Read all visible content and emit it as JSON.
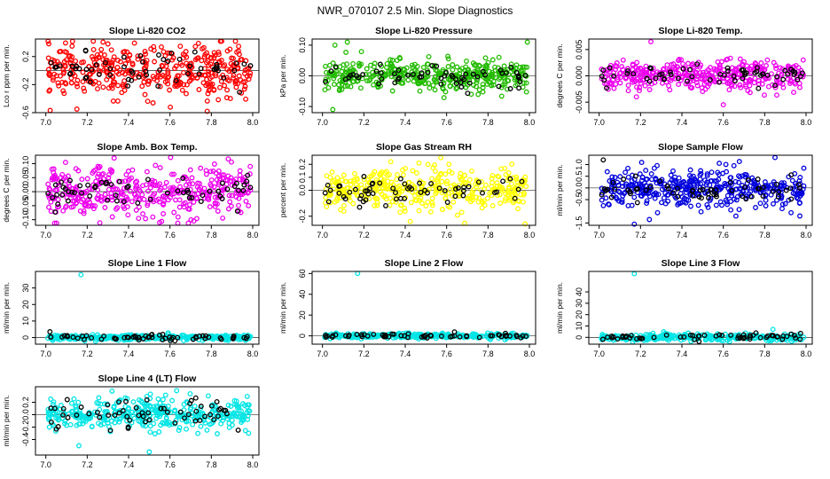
{
  "page": {
    "title": "NWR_070107  2.5 Min. Slope Diagnostics"
  },
  "colors": {
    "red": "#ff0000",
    "green": "#22bb00",
    "magenta": "#ee00ee",
    "yellow": "#ffff00",
    "blue": "#0000dd",
    "cyan": "#00e5e5",
    "black": "#000000"
  },
  "chart_data": [
    {
      "type": "scatter",
      "title": "Slope Li-820 CO2",
      "ylabel": "Lco r ppm per min.",
      "xlim": [
        6.95,
        8.03
      ],
      "ylim": [
        -0.6,
        0.45
      ],
      "xticks": [
        7.0,
        7.2,
        7.4,
        7.6,
        7.8,
        8.0
      ],
      "xtick_labels": [
        "7.0",
        "7.2",
        "7.4",
        "7.6",
        "7.8",
        "8.0"
      ],
      "yticks": [
        -0.6,
        -0.2,
        0.2
      ],
      "ytick_labels": [
        "-0.6",
        "-0.2",
        "0.2"
      ],
      "series": [
        {
          "name": "primary",
          "color": "red",
          "count": 400,
          "center": 0.0,
          "spread": 0.18,
          "outliers": [
            [
              7.15,
              -0.55
            ],
            [
              7.3,
              0.38
            ],
            [
              7.78,
              -0.58
            ],
            [
              7.85,
              0.42
            ]
          ]
        },
        {
          "name": "secondary",
          "color": "black",
          "count": 60,
          "center": 0.0,
          "spread": 0.12,
          "outliers": []
        }
      ]
    },
    {
      "type": "scatter",
      "title": "Slope Li-820 Pressure",
      "ylabel": "kPa per min.",
      "xlim": [
        6.95,
        8.03
      ],
      "ylim": [
        -0.12,
        0.12
      ],
      "xticks": [
        7.0,
        7.2,
        7.4,
        7.6,
        7.8,
        8.0
      ],
      "xtick_labels": [
        "7.0",
        "7.2",
        "7.4",
        "7.6",
        "7.8",
        "8.0"
      ],
      "yticks": [
        -0.1,
        0.0,
        0.1
      ],
      "ytick_labels": [
        "-0.10",
        "0.00",
        "0.10"
      ],
      "series": [
        {
          "name": "primary",
          "color": "green",
          "count": 400,
          "center": 0.0,
          "spread": 0.025,
          "outliers": [
            [
              7.05,
              -0.11
            ],
            [
              7.06,
              0.1
            ],
            [
              7.12,
              0.11
            ],
            [
              7.99,
              0.11
            ]
          ]
        },
        {
          "name": "secondary",
          "color": "black",
          "count": 60,
          "center": 0.0,
          "spread": 0.02,
          "outliers": []
        }
      ]
    },
    {
      "type": "scatter",
      "title": "Slope Li-820 Temp.",
      "ylabel": "degrees C per min.",
      "xlim": [
        6.95,
        8.03
      ],
      "ylim": [
        -0.007,
        0.007
      ],
      "xticks": [
        7.0,
        7.2,
        7.4,
        7.6,
        7.8,
        8.0
      ],
      "xtick_labels": [
        "7.0",
        "7.2",
        "7.4",
        "7.6",
        "7.8",
        "8.0"
      ],
      "yticks": [
        -0.005,
        0.0,
        0.005
      ],
      "ytick_labels": [
        "-0.005",
        "0.000",
        "0.005"
      ],
      "series": [
        {
          "name": "primary",
          "color": "magenta",
          "count": 380,
          "center": 0.0,
          "spread": 0.0014,
          "outliers": [
            [
              7.25,
              0.0065
            ],
            [
              7.6,
              -0.0055
            ],
            [
              7.18,
              -0.004
            ]
          ]
        },
        {
          "name": "secondary",
          "color": "black",
          "count": 60,
          "center": 0.0,
          "spread": 0.001,
          "outliers": []
        }
      ]
    },
    {
      "type": "scatter",
      "title": "Slope Amb. Box Temp.",
      "ylabel": "degrees C per min.",
      "xlim": [
        6.95,
        8.03
      ],
      "ylim": [
        -0.12,
        0.13
      ],
      "xticks": [
        7.0,
        7.2,
        7.4,
        7.6,
        7.8,
        8.0
      ],
      "xtick_labels": [
        "7.0",
        "7.2",
        "7.4",
        "7.6",
        "7.8",
        "8.0"
      ],
      "yticks": [
        -0.1,
        -0.05,
        0.0,
        0.05,
        0.1
      ],
      "ytick_labels": [
        "-0.10",
        "-0.05",
        "0.00",
        "0.05",
        "0.10"
      ],
      "series": [
        {
          "name": "primary",
          "color": "magenta",
          "count": 400,
          "center": 0.0,
          "spread": 0.045,
          "outliers": [
            [
              7.33,
              0.12
            ],
            [
              7.55,
              -0.11
            ]
          ]
        },
        {
          "name": "secondary",
          "color": "black",
          "count": 60,
          "center": 0.0,
          "spread": 0.03,
          "outliers": []
        }
      ]
    },
    {
      "type": "scatter",
      "title": "Slope Gas Stream RH",
      "ylabel": "percent per min.",
      "xlim": [
        6.95,
        8.03
      ],
      "ylim": [
        -0.27,
        0.27
      ],
      "xticks": [
        7.0,
        7.2,
        7.4,
        7.6,
        7.8,
        8.0
      ],
      "xtick_labels": [
        "7.0",
        "7.2",
        "7.4",
        "7.6",
        "7.8",
        "8.0"
      ],
      "yticks": [
        -0.2,
        0.0,
        0.1,
        0.2
      ],
      "ytick_labels": [
        "-0.2",
        "0.0",
        "0.1",
        "0.2"
      ],
      "series": [
        {
          "name": "primary",
          "color": "yellow",
          "count": 400,
          "center": 0.0,
          "spread": 0.08,
          "outliers": [
            [
              7.33,
              0.22
            ],
            [
              7.98,
              -0.26
            ]
          ]
        },
        {
          "name": "secondary",
          "color": "black",
          "count": 60,
          "center": 0.0,
          "spread": 0.05,
          "outliers": []
        }
      ]
    },
    {
      "type": "scatter",
      "title": "Slope Sample Flow",
      "ylabel": "ml/min per min.",
      "xlim": [
        6.95,
        8.03
      ],
      "ylim": [
        -1.6,
        1.4
      ],
      "xticks": [
        7.0,
        7.2,
        7.4,
        7.6,
        7.8,
        8.0
      ],
      "xtick_labels": [
        "7.0",
        "7.2",
        "7.4",
        "7.6",
        "7.8",
        "8.0"
      ],
      "yticks": [
        -1.5,
        -0.5,
        0.0,
        0.5,
        1.0
      ],
      "ytick_labels": [
        "-1.5",
        "-0.5",
        "0.0",
        "0.5",
        "1.0"
      ],
      "series": [
        {
          "name": "primary",
          "color": "blue",
          "count": 400,
          "center": 0.0,
          "spread": 0.4,
          "outliers": [
            [
              7.17,
              -1.55
            ],
            [
              7.85,
              1.3
            ],
            [
              7.97,
              -1.2
            ]
          ]
        },
        {
          "name": "secondary",
          "color": "black",
          "count": 60,
          "center": -0.1,
          "spread": 0.25,
          "outliers": [
            [
              7.02,
              1.2
            ]
          ]
        }
      ]
    },
    {
      "type": "scatter",
      "title": "Slope Line 1 Flow",
      "ylabel": "ml/min per min.",
      "xlim": [
        6.95,
        8.03
      ],
      "ylim": [
        -4,
        40
      ],
      "xticks": [
        7.0,
        7.2,
        7.4,
        7.6,
        7.8,
        8.0
      ],
      "xtick_labels": [
        "7.0",
        "7.2",
        "7.4",
        "7.6",
        "7.8",
        "8.0"
      ],
      "yticks": [
        0,
        10,
        20,
        30
      ],
      "ytick_labels": [
        "0",
        "10",
        "20",
        "30"
      ],
      "series": [
        {
          "name": "primary",
          "color": "cyan",
          "count": 320,
          "center": 0.0,
          "spread": 0.8,
          "outliers": [
            [
              7.17,
              38
            ]
          ]
        },
        {
          "name": "secondary",
          "color": "black",
          "count": 60,
          "center": 0.0,
          "spread": 0.8,
          "outliers": [
            [
              7.02,
              3.5
            ]
          ]
        }
      ]
    },
    {
      "type": "scatter",
      "title": "Slope Line 2 Flow",
      "ylabel": "ml/min per min.",
      "xlim": [
        6.95,
        8.03
      ],
      "ylim": [
        -8,
        62
      ],
      "xticks": [
        7.0,
        7.2,
        7.4,
        7.6,
        7.8,
        8.0
      ],
      "xtick_labels": [
        "7.0",
        "7.2",
        "7.4",
        "7.6",
        "7.8",
        "8.0"
      ],
      "yticks": [
        0,
        20,
        40,
        60
      ],
      "ytick_labels": [
        "0",
        "20",
        "40",
        "60"
      ],
      "series": [
        {
          "name": "primary",
          "color": "cyan",
          "count": 320,
          "center": 0.0,
          "spread": 1.2,
          "outliers": [
            [
              7.17,
              60
            ]
          ]
        },
        {
          "name": "secondary",
          "color": "black",
          "count": 60,
          "center": 0.0,
          "spread": 1.0,
          "outliers": []
        }
      ]
    },
    {
      "type": "scatter",
      "title": "Slope Line 3 Flow",
      "ylabel": "ml/min per min.",
      "xlim": [
        6.95,
        8.03
      ],
      "ylim": [
        -6,
        58
      ],
      "xticks": [
        7.0,
        7.2,
        7.4,
        7.6,
        7.8,
        8.0
      ],
      "xtick_labels": [
        "7.0",
        "7.2",
        "7.4",
        "7.6",
        "7.8",
        "8.0"
      ],
      "yticks": [
        0,
        10,
        20,
        30,
        40
      ],
      "ytick_labels": [
        "0",
        "10",
        "20",
        "30",
        "40"
      ],
      "series": [
        {
          "name": "primary",
          "color": "cyan",
          "count": 320,
          "center": 0.0,
          "spread": 1.5,
          "outliers": [
            [
              7.17,
              56
            ],
            [
              7.84,
              7
            ]
          ]
        },
        {
          "name": "secondary",
          "color": "black",
          "count": 60,
          "center": 0.5,
          "spread": 1.5,
          "outliers": []
        }
      ]
    },
    {
      "type": "scatter",
      "title": "Slope Line 4 (LT) Flow",
      "ylabel": "ml/min per min.",
      "xlim": [
        6.95,
        8.03
      ],
      "ylim": [
        -0.65,
        0.45
      ],
      "xticks": [
        7.0,
        7.2,
        7.4,
        7.6,
        7.8,
        8.0
      ],
      "xtick_labels": [
        "7.0",
        "7.2",
        "7.4",
        "7.6",
        "7.8",
        "8.0"
      ],
      "yticks": [
        -0.4,
        -0.2,
        0.0,
        0.2
      ],
      "ytick_labels": [
        "-0.4",
        "-0.2",
        "0.0",
        "0.2"
      ],
      "series": [
        {
          "name": "primary",
          "color": "cyan",
          "count": 380,
          "center": 0.0,
          "spread": 0.13,
          "outliers": [
            [
              7.32,
              0.38
            ],
            [
              7.5,
              -0.6
            ],
            [
              7.16,
              -0.5
            ]
          ]
        },
        {
          "name": "secondary",
          "color": "black",
          "count": 60,
          "center": 0.0,
          "spread": 0.12,
          "outliers": []
        }
      ]
    }
  ]
}
